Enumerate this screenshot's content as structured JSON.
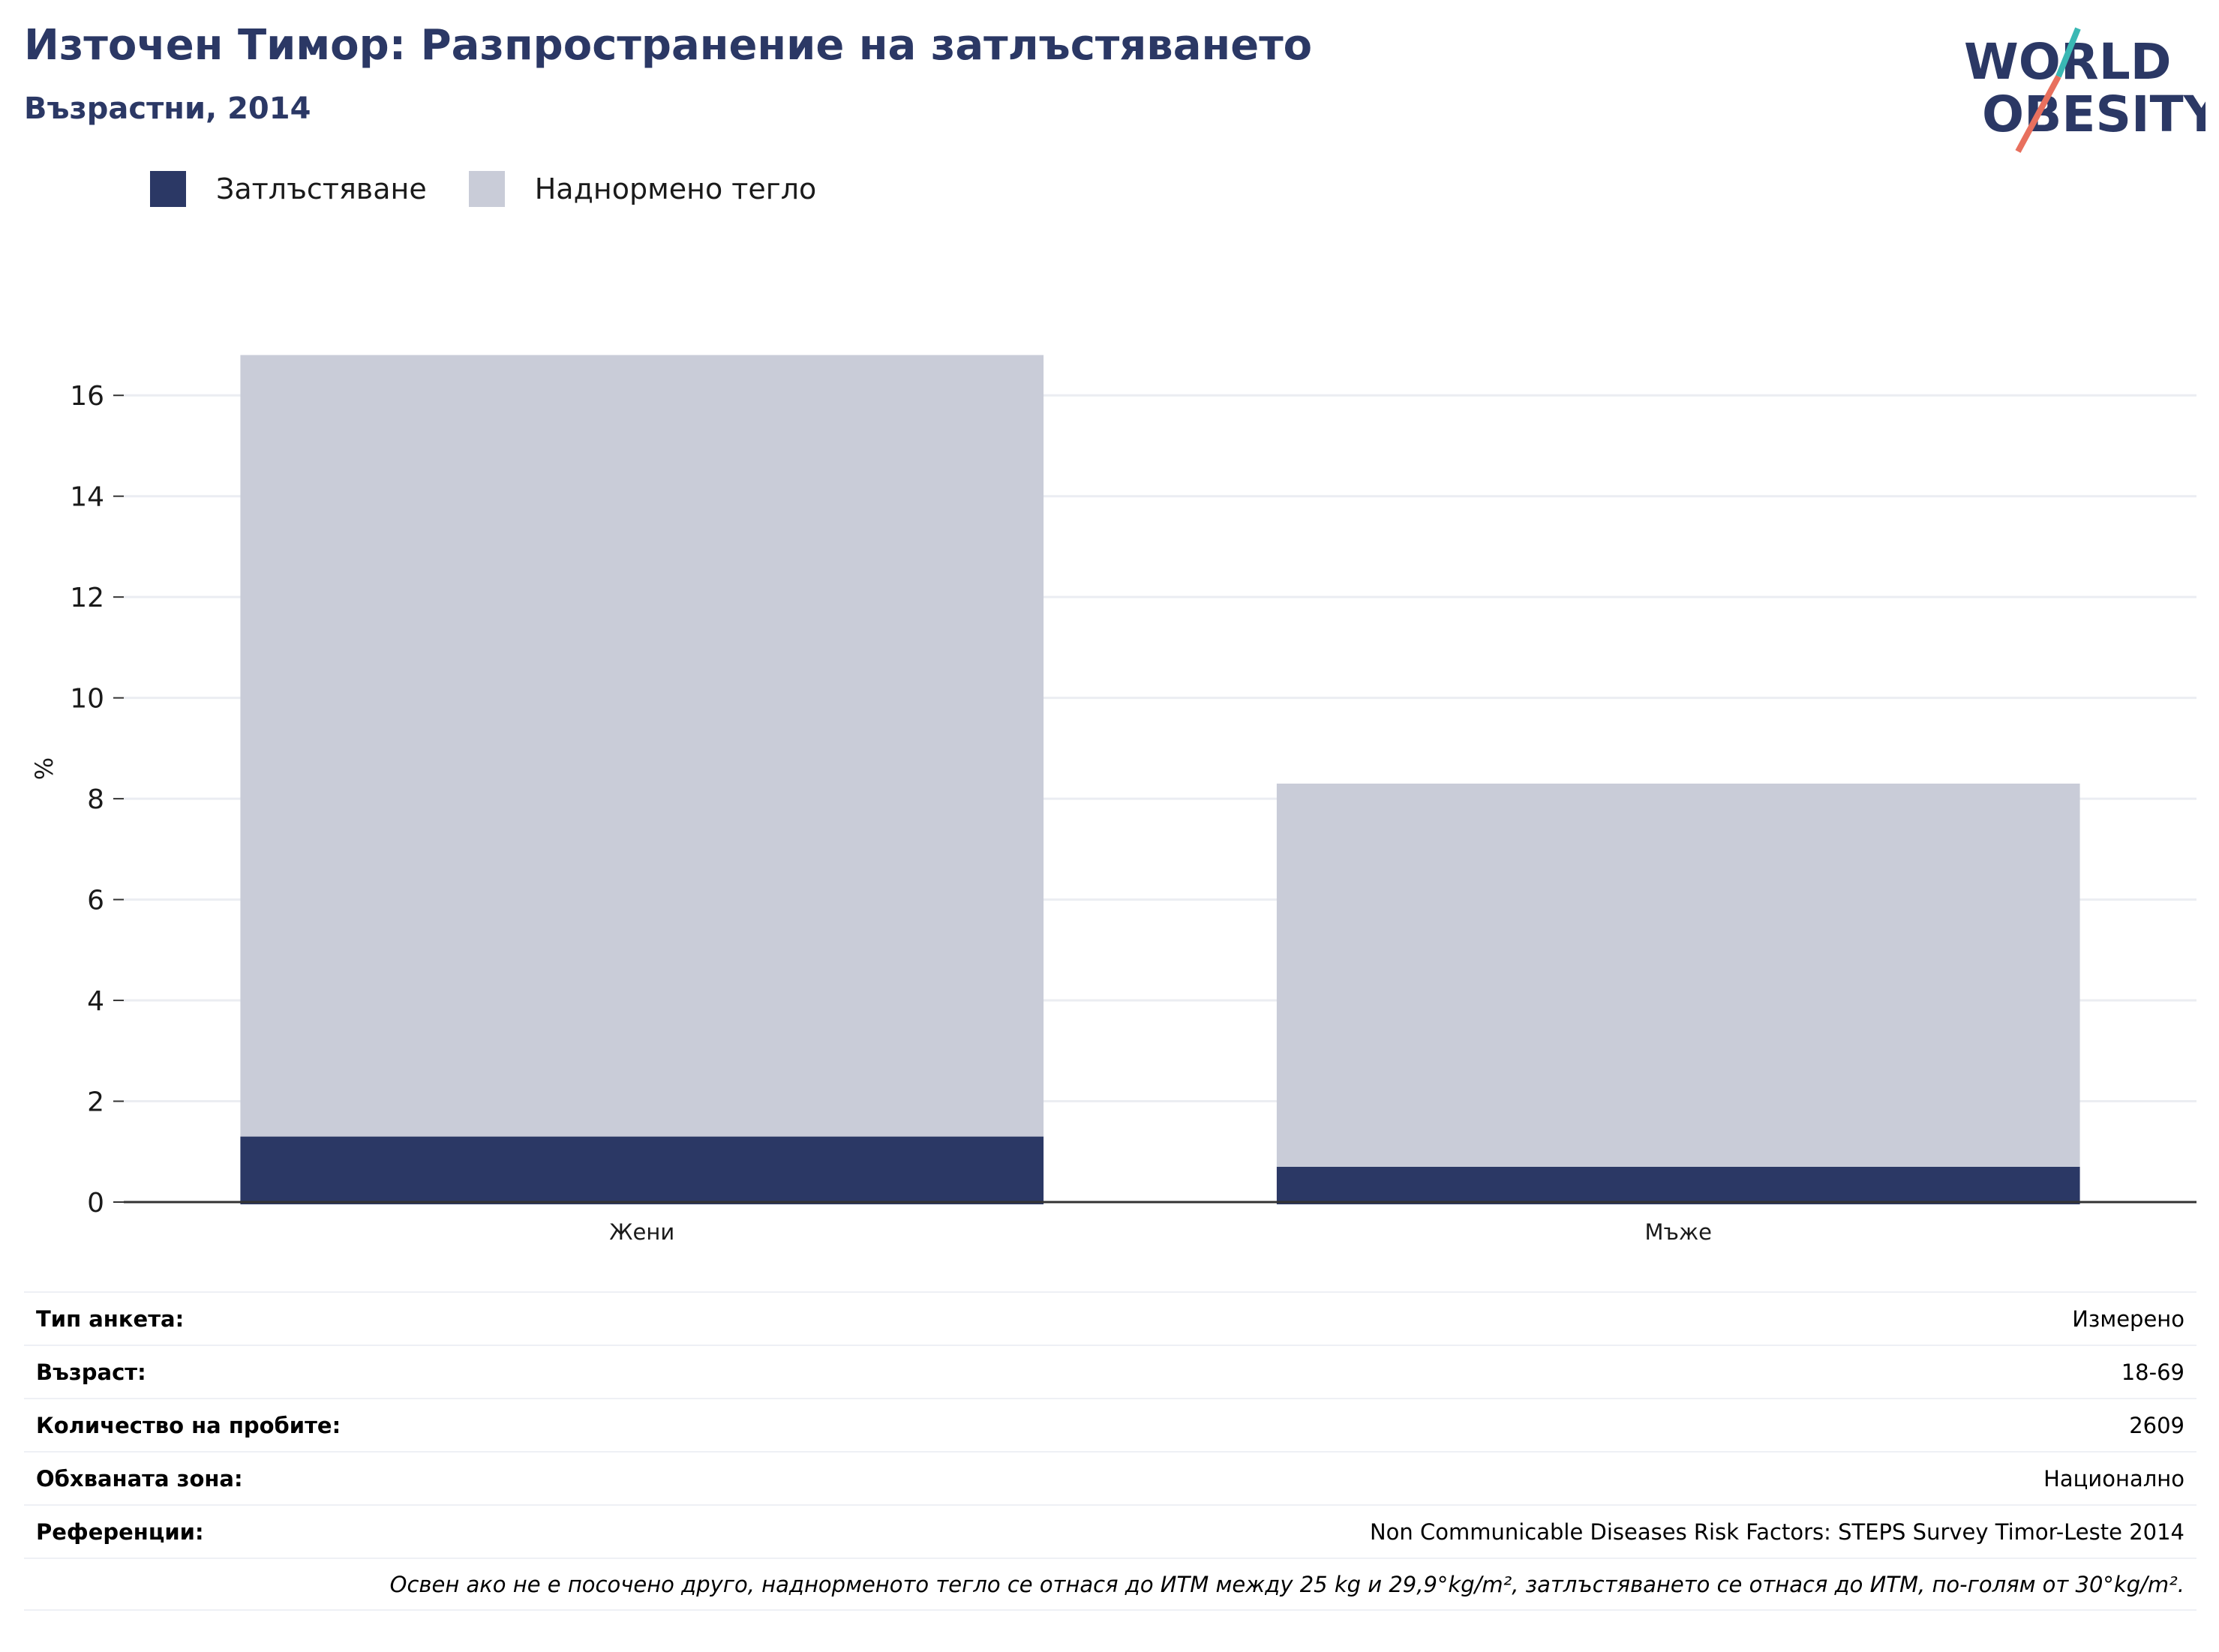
{
  "header": {
    "title": "Източен Тимор: Разпространение на затлъстяването",
    "subtitle": "Възрастни, 2014"
  },
  "logo": {
    "line1": "WORLD",
    "line2": "OBESITY",
    "icon": "world-obesity-logo"
  },
  "colors": {
    "obesity": "#2b3865",
    "overweight": "#c9ccd8",
    "grid": "#ebedf2",
    "axis": "#333333",
    "title": "#2b3865",
    "logo_teal": "#3ab8b4",
    "logo_red": "#e8705e"
  },
  "chart_data": {
    "type": "bar",
    "stacked": true,
    "categories": [
      "Жени",
      "Мъже"
    ],
    "series": [
      {
        "name": "Затлъстяване",
        "values": [
          1.3,
          0.7
        ]
      },
      {
        "name": "Наднормено тегло",
        "values": [
          15.5,
          7.6
        ]
      }
    ],
    "ylabel": "%",
    "ylim": [
      0,
      17
    ],
    "yticks": [
      0,
      2,
      4,
      6,
      8,
      10,
      12,
      14,
      16
    ],
    "grid": true,
    "legend": "top-left"
  },
  "info": [
    {
      "label": "Тип анкета:",
      "value": "Измерено"
    },
    {
      "label": "Възраст:",
      "value": "18-69"
    },
    {
      "label": "Количество на пробите:",
      "value": "2609"
    },
    {
      "label": "Обхваната зона:",
      "value": "Национално"
    },
    {
      "label": "Референции:",
      "value": "Non Communicable Diseases Risk Factors: STEPS Survey Timor-Leste 2014"
    }
  ],
  "note": "Освен ако не е посочено друго, наднорменото тегло се отнася до ИТМ между 25 kg и 29,9°kg/m², затлъстяването се отнася до ИТМ, по-голям от 30°kg/m²."
}
